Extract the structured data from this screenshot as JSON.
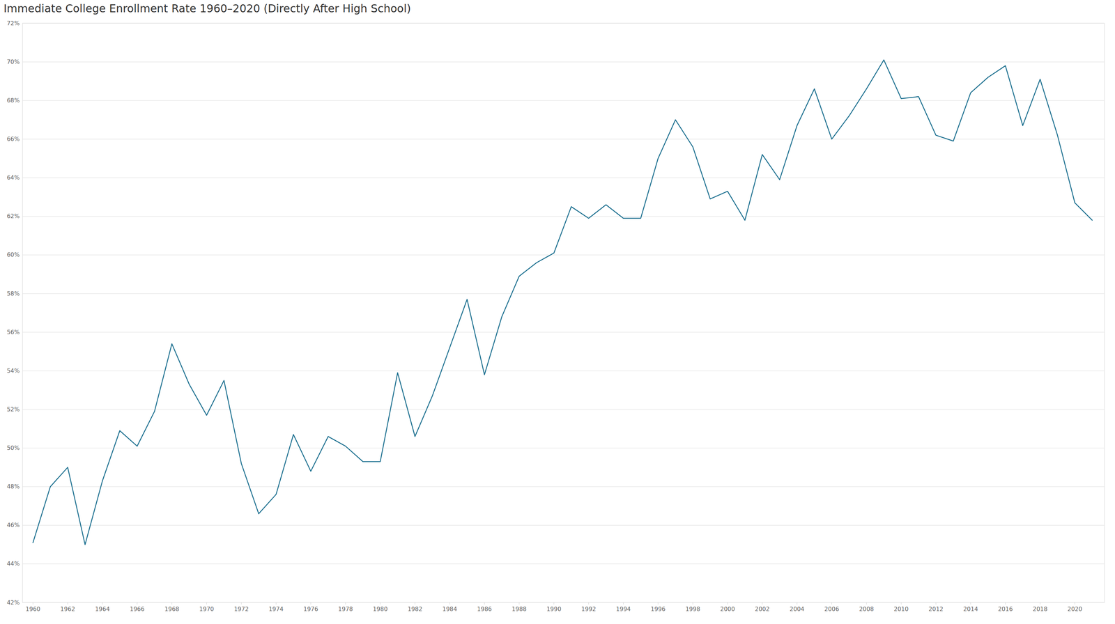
{
  "chart_data": {
    "type": "line",
    "title": "Immediate College Enrollment Rate 1960–2020 (Directly After High School)",
    "x": [
      1960,
      1961,
      1962,
      1963,
      1964,
      1965,
      1966,
      1967,
      1968,
      1969,
      1970,
      1971,
      1972,
      1973,
      1974,
      1975,
      1976,
      1977,
      1978,
      1979,
      1980,
      1981,
      1982,
      1983,
      1984,
      1985,
      1986,
      1987,
      1988,
      1989,
      1990,
      1991,
      1992,
      1993,
      1994,
      1995,
      1996,
      1997,
      1998,
      1999,
      2000,
      2001,
      2002,
      2003,
      2004,
      2005,
      2006,
      2007,
      2008,
      2009,
      2010,
      2011,
      2012,
      2013,
      2014,
      2015,
      2016,
      2017,
      2018,
      2019,
      2020,
      2021
    ],
    "values": [
      45.1,
      48.0,
      49.0,
      45.0,
      48.3,
      50.9,
      50.1,
      51.9,
      55.4,
      53.3,
      51.7,
      53.5,
      49.2,
      46.6,
      47.6,
      50.7,
      48.8,
      50.6,
      50.1,
      49.3,
      49.3,
      53.9,
      50.6,
      52.7,
      55.2,
      57.7,
      53.8,
      56.8,
      58.9,
      59.6,
      60.1,
      62.5,
      61.9,
      62.6,
      61.9,
      61.9,
      65.0,
      67.0,
      65.6,
      62.9,
      63.3,
      61.8,
      65.2,
      63.9,
      66.7,
      68.6,
      66.0,
      67.2,
      68.6,
      70.1,
      68.1,
      68.2,
      66.2,
      65.9,
      68.4,
      69.2,
      69.8,
      66.7,
      69.1,
      66.2,
      62.7,
      61.8
    ],
    "color": "#1b6f8f",
    "xlim": [
      1959.4,
      2021.7
    ],
    "xticks": [
      1960,
      1962,
      1964,
      1966,
      1968,
      1970,
      1972,
      1974,
      1976,
      1978,
      1980,
      1982,
      1984,
      1986,
      1988,
      1990,
      1992,
      1994,
      1996,
      1998,
      2000,
      2002,
      2004,
      2006,
      2008,
      2010,
      2012,
      2014,
      2016,
      2018,
      2020
    ],
    "ylim": [
      42,
      72
    ],
    "yticks": [
      {
        "value": 42,
        "label": "42%"
      },
      {
        "value": 44,
        "label": "44%"
      },
      {
        "value": 46,
        "label": "46%"
      },
      {
        "value": 48,
        "label": "48%"
      },
      {
        "value": 50,
        "label": "50%"
      },
      {
        "value": 52,
        "label": "52%"
      },
      {
        "value": 54,
        "label": "54%"
      },
      {
        "value": 56,
        "label": "56%"
      },
      {
        "value": 58,
        "label": "58%"
      },
      {
        "value": 60,
        "label": "60%"
      },
      {
        "value": 62,
        "label": "62%"
      },
      {
        "value": 64,
        "label": "64%"
      },
      {
        "value": 66,
        "label": "66%"
      },
      {
        "value": 68,
        "label": "68%"
      },
      {
        "value": 70,
        "label": "70%"
      },
      {
        "value": 72,
        "label": "72%"
      }
    ],
    "grid": true
  }
}
